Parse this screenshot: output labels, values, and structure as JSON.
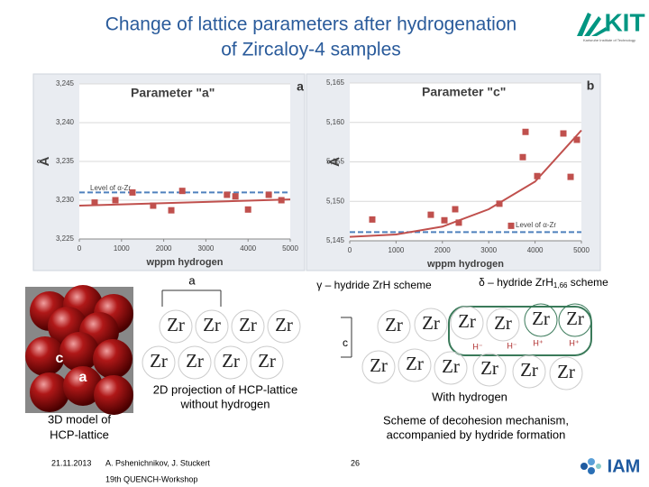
{
  "header": {
    "title": [
      "Change of lattice parameters after hydrogenation",
      "of Zircaloy-4 samples"
    ],
    "logo": "KIT",
    "logo_sub": "Karlsruhe Institute of Technology"
  },
  "chart_data": [
    {
      "type": "scatter",
      "title": "Parameter \"a\"",
      "panel_label": "a",
      "ylabel": "Å",
      "xlabel": "wppm hydrogen",
      "x": [
        363,
        855,
        1260,
        1750,
        2180,
        2440,
        3500,
        3700,
        4000,
        4490,
        4790
      ],
      "values": [
        3.2297,
        3.23,
        3.231,
        3.2293,
        3.2287,
        3.2312,
        3.2307,
        3.2305,
        3.2288,
        3.2307,
        3.23
      ],
      "color": "#c0504d",
      "trend": {
        "x": [
          0,
          5000
        ],
        "values": [
          3.2293,
          3.2301
        ]
      },
      "level": {
        "value": 3.231,
        "label": "Level of α-Zr",
        "color": "#4f81bd"
      },
      "xlim": [
        0,
        5000
      ],
      "xticks": [
        0,
        1000,
        2000,
        3000,
        4000,
        5000
      ],
      "ylim": [
        3.225,
        3.245
      ],
      "yticks": [
        {
          "value": 3.225,
          "label": "3,225"
        },
        {
          "value": 3.23,
          "label": "3,230"
        },
        {
          "value": 3.235,
          "label": "3,235"
        },
        {
          "value": 3.24,
          "label": "3,240"
        },
        {
          "value": 3.245,
          "label": "3,245"
        }
      ],
      "grid": true
    },
    {
      "type": "scatter",
      "title": "Parameter \"c\"",
      "panel_label": "b",
      "ylabel": "Å",
      "xlabel": "wppm hydrogen",
      "x": [
        486,
        1750,
        2043,
        2276,
        2354,
        3230,
        3483,
        3735,
        3794,
        4047,
        4611,
        4767,
        4903
      ],
      "values": [
        5.1477,
        5.1483,
        5.1476,
        5.149,
        5.1473,
        5.1497,
        5.1469,
        5.1556,
        5.1588,
        5.1532,
        5.1586,
        5.1531,
        5.1578
      ],
      "color": "#c0504d",
      "trend": {
        "x": [
          0,
          1000,
          2000,
          3000,
          4000,
          5000
        ],
        "values": [
          5.1455,
          5.1458,
          5.1468,
          5.149,
          5.1525,
          5.159
        ]
      },
      "level": {
        "value": 5.1461,
        "label": "Level of α-Zr",
        "color": "#4f81bd"
      },
      "xlim": [
        0,
        5000
      ],
      "xticks": [
        0,
        1000,
        2000,
        3000,
        4000,
        5000
      ],
      "ylim": [
        5.145,
        5.165
      ],
      "yticks": [
        {
          "value": 5.145,
          "label": "5,145"
        },
        {
          "value": 5.15,
          "label": "5,150"
        },
        {
          "value": 5.155,
          "label": "5,155"
        },
        {
          "value": 5.16,
          "label": "5,160"
        },
        {
          "value": 5.165,
          "label": "5,165"
        }
      ],
      "grid": true
    }
  ],
  "model": {
    "c": "c",
    "a": "a",
    "caption": [
      "3D model of",
      "HCP-lattice"
    ]
  },
  "projection": {
    "a_label": "a",
    "c_label": "c",
    "atoms": [
      "Zr",
      "Zr",
      "Zr",
      "Zr",
      "Zr",
      "Zr",
      "Zr",
      "Zr"
    ],
    "caption": [
      "2D projection of HCP-lattice",
      "without hydrogen"
    ]
  },
  "schemes": {
    "gamma": "γ – hydride ZrH scheme",
    "delta_prefix": "δ – hydride ZrH",
    "delta_sub": "1,66",
    "delta_suffix": " scheme",
    "atoms": [
      "Zr",
      "Zr",
      "Zr",
      "Zr",
      "Zr",
      "Zr",
      "Zr",
      "Zr",
      "Zr",
      "Zr",
      "Zr",
      "Zr"
    ],
    "hydrogen": [
      "H⁻",
      "H⁻",
      "H⁺",
      "H⁺"
    ],
    "caption_top": "With hydrogen",
    "caption": [
      "Scheme of decohesion mechanism,",
      "accompanied by hydride formation"
    ]
  },
  "footer": {
    "date": "21.11.2013",
    "authors": "A. Pshenichnikov, J. Stuckert",
    "event": "19th QUENCH-Workshop",
    "page": "26",
    "logo": "IAM"
  }
}
